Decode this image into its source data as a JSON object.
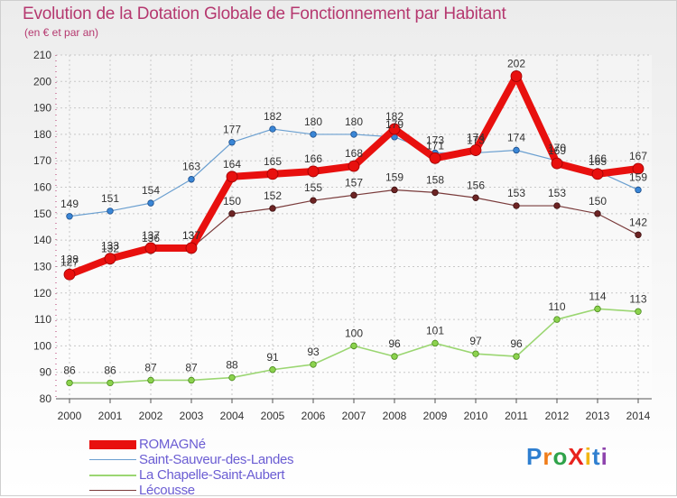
{
  "chart_data": {
    "type": "line",
    "title": "Evolution de la Dotation Globale de Fonctionnement par Habitant",
    "subtitle": "(en € et par an)",
    "x": [
      "2000",
      "2001",
      "2002",
      "2003",
      "2004",
      "2005",
      "2006",
      "2007",
      "2008",
      "2009",
      "2010",
      "2011",
      "2012",
      "2013",
      "2014"
    ],
    "ylim": [
      80,
      210
    ],
    "yticks": [
      80,
      90,
      100,
      110,
      120,
      130,
      140,
      150,
      160,
      170,
      180,
      190,
      200,
      210
    ],
    "grid": true,
    "legend_position": "bottom-left",
    "series": [
      {
        "name": "ROMAGNé",
        "color": "#e8100e",
        "values": [
          127,
          133,
          137,
          137,
          164,
          165,
          166,
          168,
          182,
          171,
          174,
          202,
          169,
          165,
          167
        ]
      },
      {
        "name": "Saint-Sauveur-des-Landes",
        "color": "#6a9fd0",
        "values": [
          149,
          151,
          154,
          163,
          177,
          182,
          180,
          180,
          179,
          173,
          173,
          174,
          170,
          166,
          159
        ]
      },
      {
        "name": "La Chapelle-Saint-Aubert",
        "color": "#9bd672",
        "values": [
          86,
          86,
          87,
          87,
          88,
          91,
          93,
          100,
          96,
          101,
          97,
          96,
          110,
          114,
          113
        ]
      },
      {
        "name": "Lécousse",
        "color": "#7a3b3b",
        "values": [
          128,
          132,
          136,
          137,
          150,
          152,
          155,
          157,
          159,
          158,
          156,
          153,
          153,
          150,
          142
        ]
      }
    ]
  },
  "logo": {
    "text": "ProXiti",
    "letter_colors": [
      "#2f7fd0",
      "#f07d1a",
      "#2fa34a",
      "#e8231d",
      "#f2b613",
      "#2f7fd0",
      "#8e44ad"
    ]
  }
}
